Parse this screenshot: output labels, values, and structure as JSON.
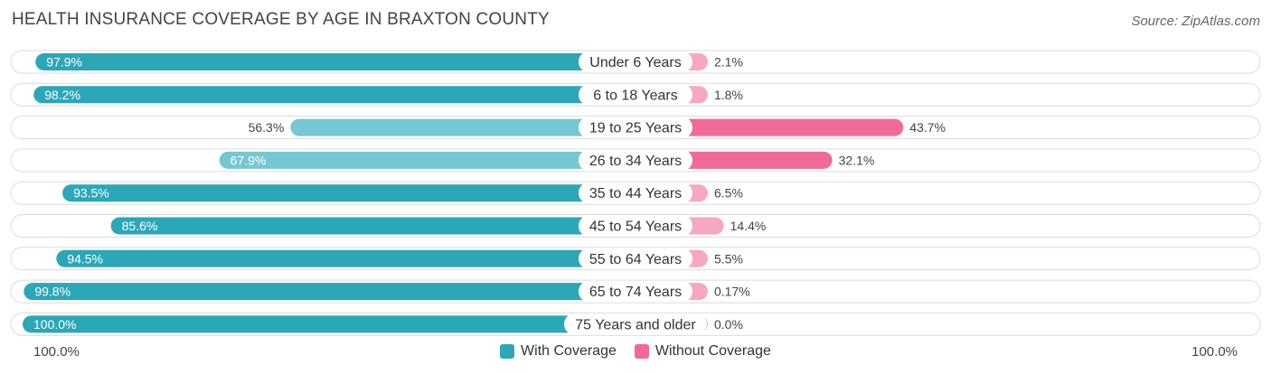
{
  "title": "HEALTH INSURANCE COVERAGE BY AGE IN BRAXTON COUNTY",
  "source": "Source: ZipAtlas.com",
  "colors": {
    "with_strong": "#2ca7b8",
    "with_light": "#75c8d2",
    "without_strong": "#f06a95",
    "without_light": "#f7a8c1",
    "track": "#efefef"
  },
  "legend": {
    "with_label": "With Coverage",
    "without_label": "Without Coverage"
  },
  "axis": {
    "left_label": "100.0%",
    "right_label": "100.0%"
  },
  "chart_data": {
    "type": "bar",
    "orientation": "diverging-horizontal",
    "title": "HEALTH INSURANCE COVERAGE BY AGE IN BRAXTON COUNTY",
    "categories": [
      "Under 6 Years",
      "6 to 18 Years",
      "19 to 25 Years",
      "26 to 34 Years",
      "35 to 44 Years",
      "45 to 54 Years",
      "55 to 64 Years",
      "65 to 74 Years",
      "75 Years and older"
    ],
    "series": [
      {
        "name": "With Coverage",
        "values": [
          97.9,
          98.2,
          56.3,
          67.9,
          93.5,
          85.6,
          94.5,
          99.8,
          100.0
        ],
        "labels": [
          "97.9%",
          "98.2%",
          "56.3%",
          "67.9%",
          "93.5%",
          "85.6%",
          "94.5%",
          "99.8%",
          "100.0%"
        ]
      },
      {
        "name": "Without Coverage",
        "values": [
          2.1,
          1.8,
          43.7,
          32.1,
          6.5,
          14.4,
          5.5,
          0.17,
          0.0
        ],
        "labels": [
          "2.1%",
          "1.8%",
          "43.7%",
          "32.1%",
          "6.5%",
          "14.4%",
          "5.5%",
          "0.17%",
          "0.0%"
        ]
      }
    ],
    "xlim": [
      0,
      100
    ],
    "legend_position": "bottom-center"
  }
}
